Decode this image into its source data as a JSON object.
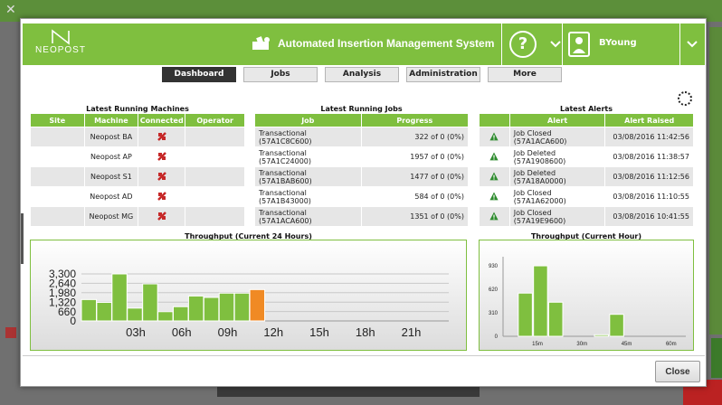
{
  "app": {
    "brand": "NEOPOST",
    "title": "Automated Insertion Management System",
    "help_symbol": "?",
    "username": "BYoung"
  },
  "colors": {
    "accent": "#7fbf3f",
    "highlight_bar": "#f08a24",
    "alert_icon": "#2e8b2e",
    "machine_icon": "#c62828"
  },
  "tabs": [
    {
      "label": "Dashboard",
      "active": true
    },
    {
      "label": "Jobs",
      "active": false
    },
    {
      "label": "Analysis",
      "active": false
    },
    {
      "label": "Administration",
      "active": false
    },
    {
      "label": "More",
      "active": false
    }
  ],
  "machines": {
    "title": "Latest Running Machines",
    "columns": [
      "Site",
      "Machine",
      "Connected",
      "Operator"
    ],
    "rows": [
      {
        "site": "",
        "machine": "Neopost BA",
        "connected_icon": "disconnected-plug-icon",
        "operator": ""
      },
      {
        "site": "",
        "machine": "Neopost AP",
        "connected_icon": "disconnected-plug-icon",
        "operator": ""
      },
      {
        "site": "",
        "machine": "Neopost S1",
        "connected_icon": "disconnected-plug-icon",
        "operator": ""
      },
      {
        "site": "",
        "machine": "Neopost AD",
        "connected_icon": "disconnected-plug-icon",
        "operator": ""
      },
      {
        "site": "",
        "machine": "Neopost MG",
        "connected_icon": "disconnected-plug-icon",
        "operator": ""
      }
    ]
  },
  "jobs": {
    "title": "Latest Running Jobs",
    "columns": [
      "Job",
      "Progress"
    ],
    "rows": [
      {
        "job": "Transactional (57A1C8C600)",
        "progress": "322 of 0 (0%)"
      },
      {
        "job": "Transactional (57A1C24000)",
        "progress": "1957 of 0 (0%)"
      },
      {
        "job": "Transactional (57A1BAB600)",
        "progress": "1477 of 0 (0%)"
      },
      {
        "job": "Transactional (57A1B43000)",
        "progress": "584 of 0 (0%)"
      },
      {
        "job": "Transactional (57A1ACA600)",
        "progress": "1351 of 0 (0%)"
      }
    ]
  },
  "alerts": {
    "title": "Latest Alerts",
    "columns": [
      "",
      "Alert",
      "Alert Raised"
    ],
    "rows": [
      {
        "icon": "warning-icon",
        "alert": "Job Closed (57A1ACA600)",
        "raised": "03/08/2016 11:42:56"
      },
      {
        "icon": "warning-icon",
        "alert": "Job Deleted (57A1908600)",
        "raised": "03/08/2016 11:38:57"
      },
      {
        "icon": "warning-icon",
        "alert": "Job Deleted (57A18A0000)",
        "raised": "03/08/2016 11:12:56"
      },
      {
        "icon": "warning-icon",
        "alert": "Job Closed (57A1A62000)",
        "raised": "03/08/2016 11:10:55"
      },
      {
        "icon": "warning-icon",
        "alert": "Job Closed (57A19E9600)",
        "raised": "03/08/2016 10:41:55"
      }
    ]
  },
  "chart_data": [
    {
      "type": "bar",
      "title": "Throughput (Current 24 Hours)",
      "yticks": [
        "0",
        "660",
        "1,320",
        "1,980",
        "2,640",
        "3,300"
      ],
      "ylim": [
        0,
        3300
      ],
      "xticks": [
        "03h",
        "06h",
        "09h",
        "12h",
        "15h",
        "18h",
        "21h"
      ],
      "x": [
        0,
        1,
        2,
        3,
        4,
        5,
        6,
        7,
        8,
        9,
        10,
        11
      ],
      "values": [
        1500,
        1300,
        3300,
        900,
        2600,
        650,
        1000,
        1750,
        1650,
        1950,
        1950,
        2200
      ],
      "highlight_index": 11,
      "grid": true,
      "xlim": [
        0,
        24
      ]
    },
    {
      "type": "bar",
      "title": "Throughput (Current Hour)",
      "yticks": [
        "0",
        "310",
        "620",
        "930"
      ],
      "ylim": [
        0,
        1050
      ],
      "xticks": [
        "15m",
        "30m",
        "45m",
        "60m"
      ],
      "x": [
        1,
        2,
        3,
        6,
        7
      ],
      "values": [
        570,
        930,
        450,
        20,
        290
      ],
      "xlim": [
        0,
        12
      ],
      "grid": false
    }
  ],
  "footer": {
    "close_label": "Close"
  }
}
